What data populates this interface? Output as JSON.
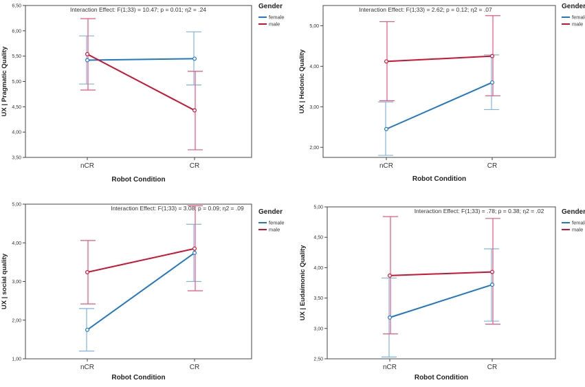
{
  "chart_data": [
    {
      "type": "line",
      "title": "Interaction Effect: F(1;33) = 10.47; p = 0.01; η2 = .24",
      "xlabel": "Robot Condition",
      "ylabel": "UX | Pragmatic Quality",
      "categories": [
        "nCR",
        "CR"
      ],
      "ylim": [
        3.5,
        6.5
      ],
      "yticks": [
        3.5,
        4.0,
        4.5,
        5.0,
        5.5,
        6.0,
        6.5
      ],
      "yticklabels": [
        "3,50",
        "4,00",
        "4,50",
        "5,00",
        "5,50",
        "6,00",
        "6,50"
      ],
      "legend_title": "Gender",
      "series": [
        {
          "name": "female",
          "color": "#1f77c8",
          "error_color": "#7fb3e6",
          "values": [
            5.42,
            5.45
          ],
          "lower": [
            4.95,
            4.93
          ],
          "upper": [
            5.9,
            5.98
          ]
        },
        {
          "name": "male",
          "color": "#d0102f",
          "error_color": "#e8557a",
          "values": [
            5.54,
            4.43
          ],
          "lower": [
            4.83,
            3.65
          ],
          "upper": [
            6.24,
            5.2
          ]
        }
      ]
    },
    {
      "type": "line",
      "title": "Interaction Effect: F(1;33) = 2.62; p = 0.12; η2 = .07",
      "xlabel": "Robot Condition",
      "ylabel": "UX | Hedonic Quality",
      "categories": [
        "nCR",
        "CR"
      ],
      "ylim": [
        1.75,
        5.5
      ],
      "yticks": [
        2.0,
        3.0,
        4.0,
        5.0
      ],
      "yticklabels": [
        "2,00",
        "3,00",
        "4,00",
        "5,00"
      ],
      "legend_title": "Gender",
      "series": [
        {
          "name": "female",
          "color": "#1f77c8",
          "error_color": "#7fb3e6",
          "values": [
            2.45,
            3.6
          ],
          "lower": [
            1.8,
            2.93
          ],
          "upper": [
            3.12,
            4.28
          ]
        },
        {
          "name": "male",
          "color": "#d0102f",
          "error_color": "#e8557a",
          "values": [
            4.12,
            4.25
          ],
          "lower": [
            3.15,
            3.27
          ],
          "upper": [
            5.1,
            5.25
          ]
        }
      ]
    },
    {
      "type": "line",
      "title": "Interaction Effect: F(1;33) = 3.08; p = 0.09; η2 = .09",
      "xlabel": "Robot Condition",
      "ylabel": "UX | social quality",
      "categories": [
        "nCR",
        "CR"
      ],
      "ylim": [
        1.0,
        5.0
      ],
      "yticks": [
        1.0,
        2.0,
        3.0,
        4.0,
        5.0
      ],
      "yticklabels": [
        "1,00",
        "2,00",
        "3,00",
        "4,00",
        "5,00"
      ],
      "legend_title": "Gender",
      "series": [
        {
          "name": "female",
          "color": "#1f77c8",
          "error_color": "#7fb3e6",
          "values": [
            1.75,
            3.74
          ],
          "lower": [
            1.2,
            3.0
          ],
          "upper": [
            2.3,
            4.48
          ]
        },
        {
          "name": "male",
          "color": "#d0102f",
          "error_color": "#e8557a",
          "values": [
            3.24,
            3.85
          ],
          "lower": [
            2.42,
            2.76
          ],
          "upper": [
            4.06,
            4.96
          ]
        }
      ]
    },
    {
      "type": "line",
      "title": "Interaction Effect: F(1;33) = .78; p = 0.38; η2 = .02",
      "xlabel": "Robot Condition",
      "ylabel": "UX | Eudaimonic Quality",
      "categories": [
        "nCR",
        "CR"
      ],
      "ylim": [
        2.5,
        5.0
      ],
      "yticks": [
        2.5,
        3.0,
        3.5,
        4.0,
        4.5,
        5.0
      ],
      "yticklabels": [
        "2,50",
        "3,00",
        "3,50",
        "4,00",
        "4,50",
        "5,00"
      ],
      "legend_title": "Gender",
      "series": [
        {
          "name": "female",
          "color": "#1f77c8",
          "error_color": "#7fb3e6",
          "values": [
            3.18,
            3.72
          ],
          "lower": [
            2.53,
            3.12
          ],
          "upper": [
            3.83,
            4.31
          ]
        },
        {
          "name": "male",
          "color": "#d0102f",
          "error_color": "#e8557a",
          "values": [
            3.87,
            3.93
          ],
          "lower": [
            2.91,
            3.07
          ],
          "upper": [
            4.84,
            4.81
          ]
        }
      ]
    }
  ]
}
